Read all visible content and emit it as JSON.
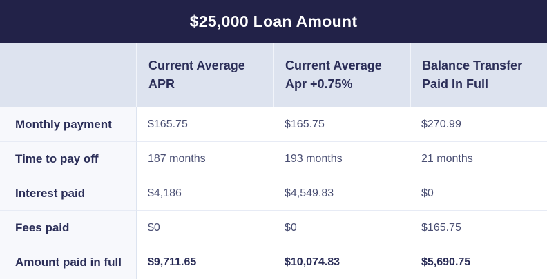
{
  "colors": {
    "title_bar_bg": "#222248",
    "title_text": "#ffffff",
    "header_row_bg": "#dde3ef",
    "label_column_bg": "#f7f8fc",
    "heading_text": "#2b2e58",
    "value_text": "#4a4f73",
    "grid_line": "#dde4f0"
  },
  "chart_data": {
    "type": "table",
    "title": "$25,000 Loan Amount",
    "columns": [
      "",
      "Current Average APR",
      "Current Average Apr +0.75%",
      "Balance Transfer Paid In Full"
    ],
    "rows": [
      [
        "Monthly payment",
        "$165.75",
        "$165.75",
        "$270.99"
      ],
      [
        "Time to pay off",
        "187 months",
        "193 months",
        "21 months"
      ],
      [
        "Interest paid",
        "$4,186",
        "$4,549.83",
        "$0"
      ],
      [
        "Fees paid",
        "$0",
        "$0",
        "$165.75"
      ],
      [
        "Amount paid in full",
        "$9,711.65",
        "$10,074.83",
        "$5,690.75"
      ]
    ]
  }
}
